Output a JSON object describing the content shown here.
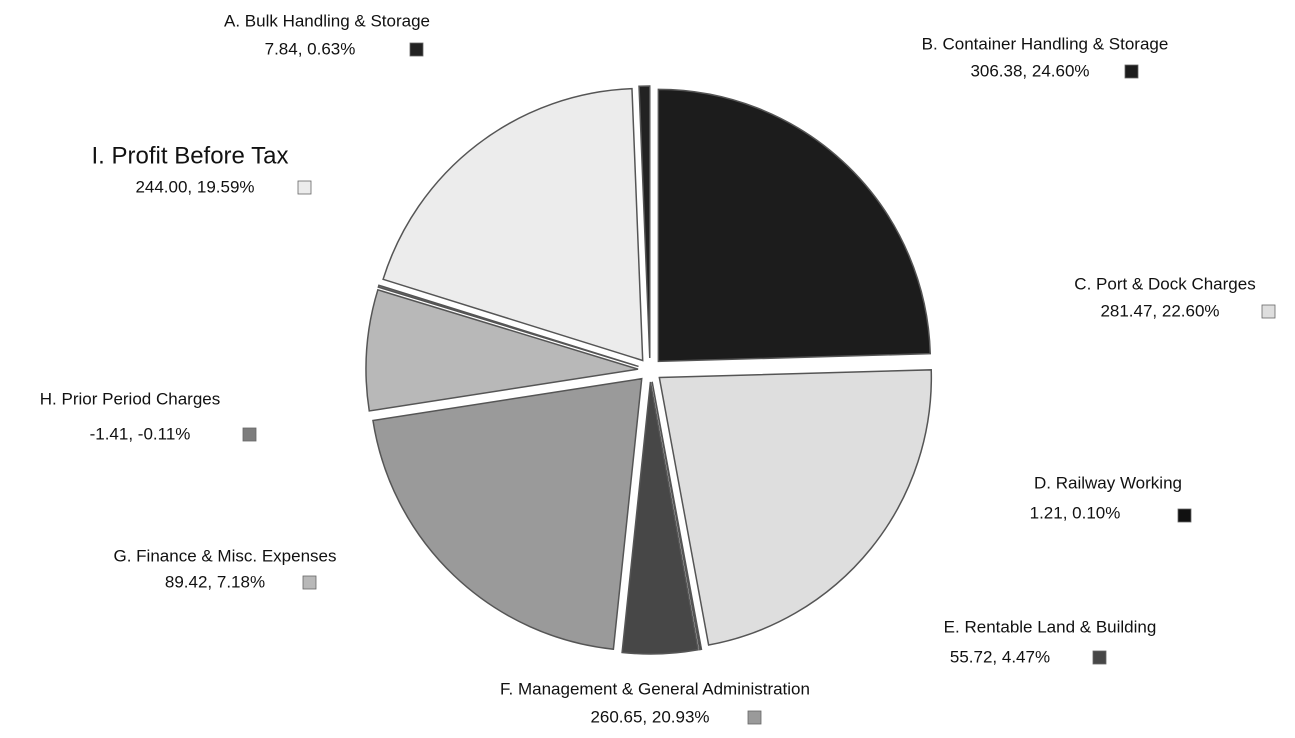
{
  "chart_data": {
    "type": "pie",
    "categories": [
      "A. Bulk Handling & Storage",
      "B. Container Handling & Storage",
      "C. Port & Dock Charges",
      "D. Railway Working",
      "E. Rentable Land & Building",
      "F. Management & General Administration",
      "G. Finance & Misc. Expenses",
      "H. Prior Period Charges",
      "I. Profit Before Tax"
    ],
    "values": [
      7.84,
      306.38,
      281.47,
      1.21,
      55.72,
      260.65,
      89.42,
      -1.41,
      244.0
    ],
    "value_labels": [
      "7.84,  0.63%",
      "306.38,  24.60%",
      "281.47,  22.60%",
      "1.21,  0.10%",
      "55.72,  4.47%",
      "260.65,  20.93%",
      "89.42,  7.18%",
      "-1.41,  -0.11%",
      "244.00,  19.59%"
    ],
    "colors": [
      "#222222",
      "#1c1c1c",
      "#dedede",
      "#111111",
      "#474747",
      "#9a9a9a",
      "#b8b8b8",
      "#7d7d7d",
      "#ececec"
    ]
  }
}
